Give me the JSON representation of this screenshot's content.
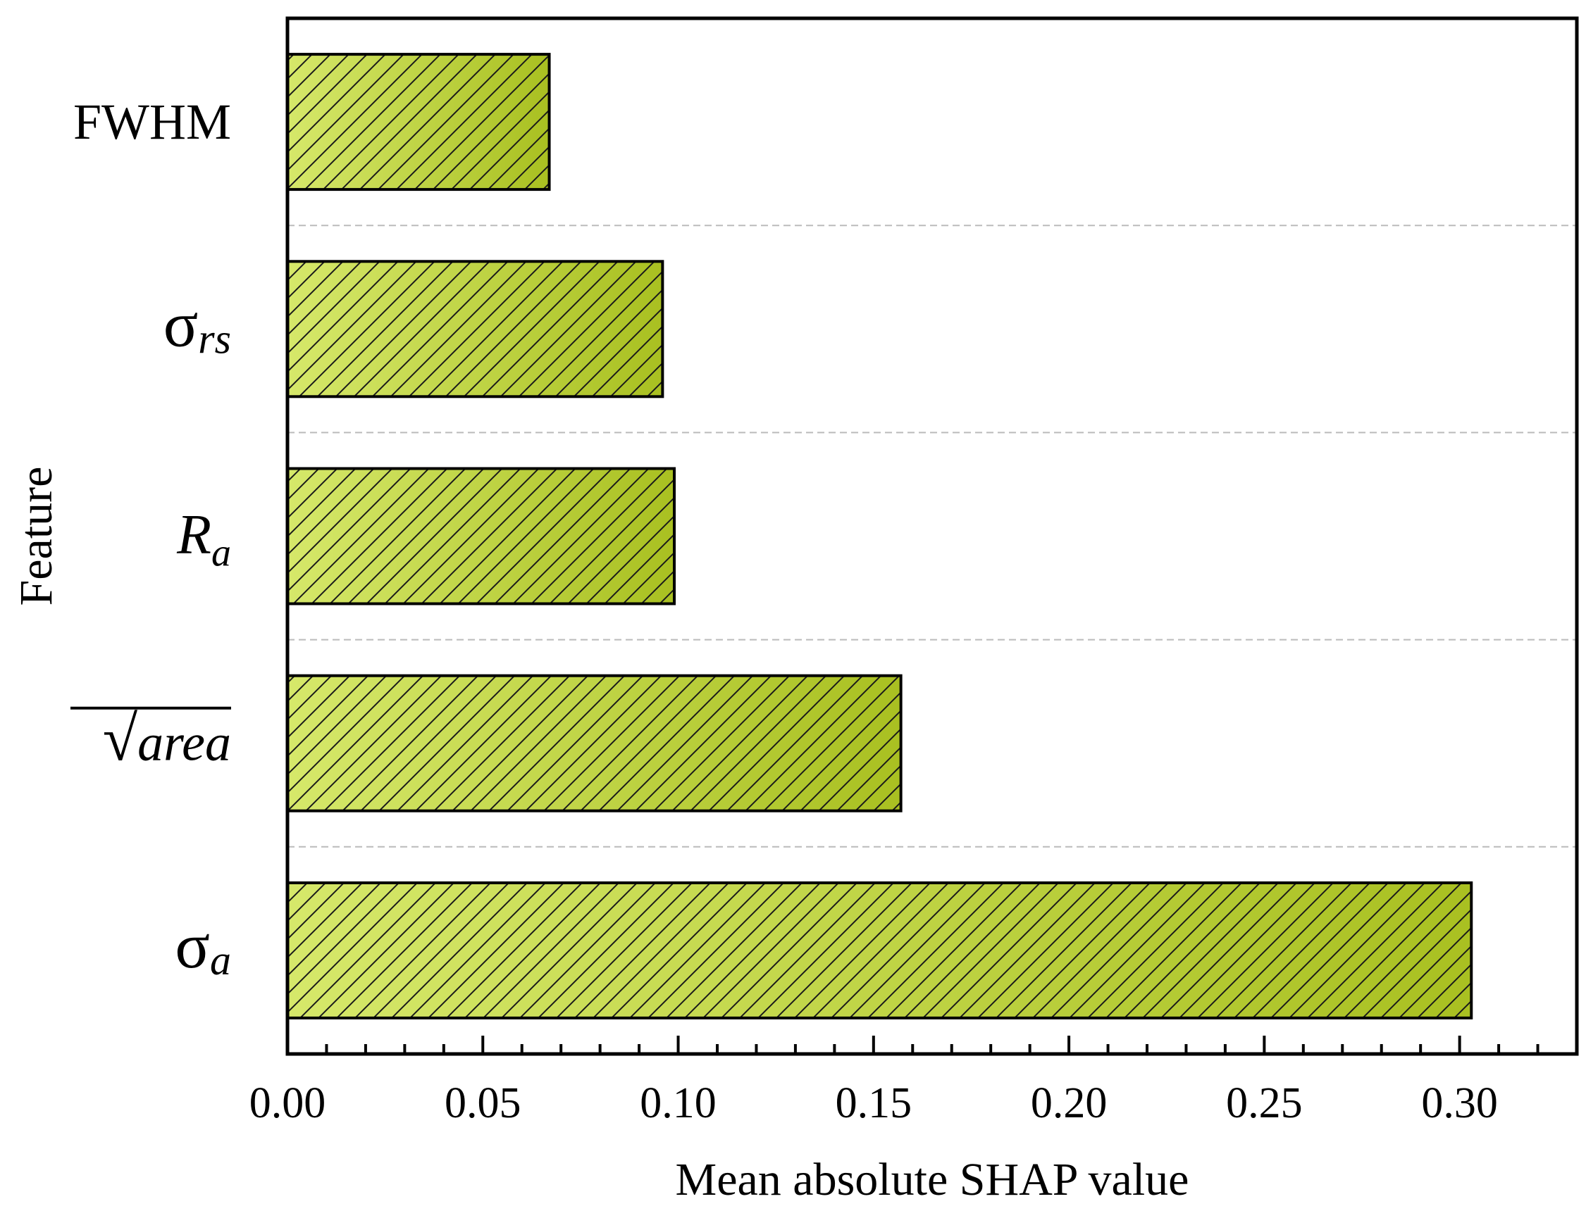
{
  "chart_data": {
    "type": "bar",
    "orientation": "horizontal",
    "title": "",
    "xlabel": "Mean absolute SHAP value",
    "ylabel": "Feature",
    "xlim": [
      0,
      0.33
    ],
    "xticks": [
      0.0,
      0.05,
      0.1,
      0.15,
      0.2,
      0.25,
      0.3
    ],
    "xtick_labels": [
      "0.00",
      "0.05",
      "0.10",
      "0.15",
      "0.20",
      "0.25",
      "0.30"
    ],
    "x_minor_tick_step": 0.01,
    "grid": "horizontal dashed separators between categories",
    "categories": [
      {
        "key": "fwhm",
        "label": "FWHM",
        "value": 0.067
      },
      {
        "key": "sigma_rs",
        "label": "σrs",
        "value": 0.096
      },
      {
        "key": "r_a",
        "label": "Ra",
        "value": 0.099
      },
      {
        "key": "sqrt_area",
        "label": "√area",
        "value": 0.157
      },
      {
        "key": "sigma_a",
        "label": "σa",
        "value": 0.303
      }
    ],
    "style": {
      "bar_fill_start": "#d6e86a",
      "bar_fill_end": "#a9c021",
      "bar_edge": "#000000",
      "hatch": "diagonal",
      "separator": "#bbbbbb"
    }
  }
}
